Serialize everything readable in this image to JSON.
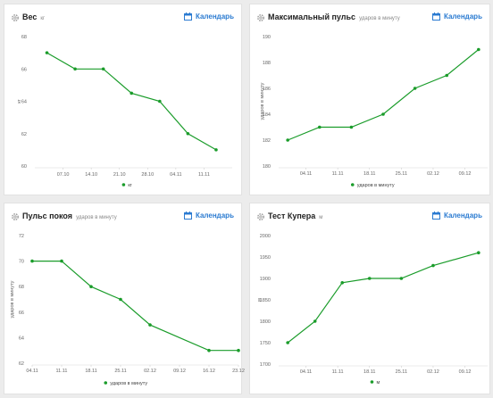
{
  "colors": {
    "line": "#1a9c2a",
    "link": "#2b7bd1",
    "axis": "#666666",
    "grid": "#e4e4e4"
  },
  "icons": {
    "settings": "gear-icon",
    "calendar": "calendar-icon"
  },
  "cards": [
    {
      "title": "Вес",
      "unit": "кг",
      "calendar_label": "Календарь",
      "chart_data": {
        "type": "line",
        "ylabel": "кг",
        "y_ticks": [
          60,
          62,
          64,
          66,
          68
        ],
        "ylim": [
          60,
          68
        ],
        "x_ticks": [
          "07.10",
          "14.10",
          "21.10",
          "28.10",
          "04.11",
          "11.11"
        ],
        "x_tick_values": [
          7,
          14,
          21,
          28,
          35,
          42
        ],
        "xlim": [
          0,
          49
        ],
        "x": [
          3,
          10,
          17,
          24,
          31,
          38,
          45
        ],
        "series": [
          {
            "name": "кг",
            "values": [
              67,
              66,
              66,
              64.5,
              64,
              62,
              61
            ]
          }
        ],
        "grid": false,
        "legend": "bottom"
      }
    },
    {
      "title": "Максимальный пульс",
      "unit": "ударов в минуту",
      "calendar_label": "Календарь",
      "chart_data": {
        "type": "line",
        "ylabel": "ударов в минуту",
        "y_ticks": [
          180,
          182,
          184,
          186,
          188,
          190
        ],
        "ylim": [
          180,
          190
        ],
        "x_ticks": [
          "04.11",
          "11.11",
          "18.11",
          "25.11",
          "02.12",
          "09.12"
        ],
        "x_tick_values": [
          4,
          11,
          18,
          25,
          32,
          39
        ],
        "xlim": [
          -2,
          44
        ],
        "x": [
          0,
          7,
          14,
          21,
          28,
          35,
          42
        ],
        "series": [
          {
            "name": "ударов в минуту",
            "values": [
              182,
              183,
              183,
              184,
              186,
              187,
              189
            ]
          }
        ],
        "grid": false,
        "legend": "bottom"
      }
    },
    {
      "title": "Пульс покоя",
      "unit": "ударов в минуту",
      "calendar_label": "Календарь",
      "chart_data": {
        "type": "line",
        "ylabel": "ударов в минуту",
        "y_ticks": [
          62,
          64,
          66,
          68,
          70,
          72
        ],
        "ylim": [
          62,
          72
        ],
        "x_ticks": [
          "04.11",
          "11.11",
          "18.11",
          "25.11",
          "02.12",
          "09.12",
          "16.12",
          "23.12"
        ],
        "x_tick_values": [
          4,
          11,
          18,
          25,
          32,
          39,
          46,
          53
        ],
        "xlim": [
          4,
          53
        ],
        "x": [
          4,
          11,
          18,
          25,
          32,
          46,
          53
        ],
        "series": [
          {
            "name": "ударов в минуту",
            "values": [
              70,
              70,
              68,
              67,
              65,
              63,
              63
            ]
          }
        ],
        "grid": false,
        "legend": "bottom"
      }
    },
    {
      "title": "Тест Купера",
      "unit": "м",
      "calendar_label": "Календарь",
      "chart_data": {
        "type": "line",
        "ylabel": "м",
        "y_ticks": [
          1700,
          1750,
          1800,
          1850,
          1900,
          1950,
          2000
        ],
        "ylim": [
          1700,
          2000
        ],
        "x_ticks": [
          "04.11",
          "11.11",
          "18.11",
          "25.11",
          "02.12",
          "09.12"
        ],
        "x_tick_values": [
          4,
          11,
          18,
          25,
          32,
          39
        ],
        "xlim": [
          -2,
          44
        ],
        "x": [
          0,
          6,
          12,
          18,
          25,
          32,
          42
        ],
        "series": [
          {
            "name": "м",
            "values": [
              1750,
              1800,
              1890,
              1900,
              1900,
              1930,
              1960
            ]
          }
        ],
        "grid": false,
        "legend": "bottom"
      }
    }
  ]
}
